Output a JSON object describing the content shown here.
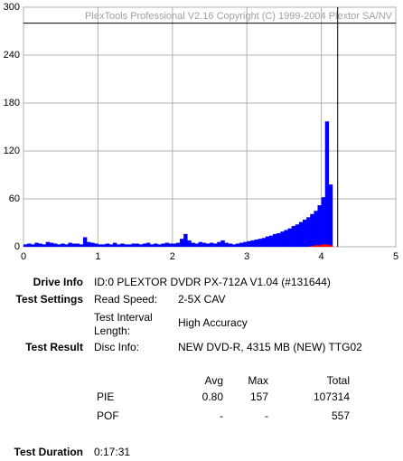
{
  "chart_data": {
    "type": "bar",
    "title": "PlexTools Professional V2.16 Copyright (C) 1999-2004 Plextor SA/NV",
    "x": [
      0.0,
      0.05,
      0.1,
      0.15,
      0.2,
      0.25,
      0.3,
      0.35,
      0.4,
      0.45,
      0.5,
      0.55,
      0.6,
      0.65,
      0.7,
      0.75,
      0.8,
      0.85,
      0.9,
      0.95,
      1.0,
      1.05,
      1.1,
      1.15,
      1.2,
      1.25,
      1.3,
      1.35,
      1.4,
      1.45,
      1.5,
      1.55,
      1.6,
      1.65,
      1.7,
      1.75,
      1.8,
      1.85,
      1.9,
      1.95,
      2.0,
      2.05,
      2.1,
      2.15,
      2.2,
      2.25,
      2.3,
      2.35,
      2.4,
      2.45,
      2.5,
      2.55,
      2.6,
      2.65,
      2.7,
      2.75,
      2.8,
      2.85,
      2.9,
      2.95,
      3.0,
      3.05,
      3.1,
      3.15,
      3.2,
      3.25,
      3.3,
      3.35,
      3.4,
      3.45,
      3.5,
      3.55,
      3.6,
      3.65,
      3.7,
      3.75,
      3.8,
      3.85,
      3.9,
      3.95,
      4.0,
      4.05,
      4.1
    ],
    "series": [
      {
        "name": "PIE",
        "color": "#0000ff",
        "values": [
          3,
          4,
          3,
          5,
          4,
          3,
          6,
          5,
          4,
          3,
          4,
          3,
          5,
          4,
          4,
          3,
          12,
          6,
          5,
          4,
          3,
          3,
          4,
          3,
          5,
          3,
          4,
          3,
          3,
          4,
          4,
          3,
          4,
          5,
          3,
          4,
          3,
          4,
          5,
          4,
          4,
          5,
          10,
          16,
          8,
          5,
          4,
          6,
          5,
          4,
          5,
          4,
          6,
          8,
          5,
          4,
          3,
          4,
          5,
          6,
          7,
          8,
          9,
          10,
          11,
          13,
          14,
          16,
          17,
          19,
          21,
          23,
          26,
          28,
          31,
          34,
          37,
          41,
          45,
          52,
          62,
          157,
          78
        ]
      },
      {
        "name": "POF",
        "color": "#ff0000",
        "values": [
          0,
          0,
          0,
          0,
          0,
          0,
          0,
          0,
          0,
          0,
          0,
          0,
          0,
          0,
          0,
          0,
          0,
          0,
          0,
          0,
          0,
          0,
          0,
          0,
          0,
          0,
          0,
          0,
          0,
          0,
          0,
          0,
          0,
          0,
          0,
          0,
          0,
          0,
          0,
          0,
          0,
          0,
          0,
          0,
          0,
          0,
          0,
          0,
          0,
          0,
          0,
          0,
          0,
          0,
          0,
          0,
          0,
          0,
          0,
          0,
          0,
          0,
          0,
          0,
          0,
          0,
          0,
          0,
          0,
          0,
          0,
          0,
          0,
          0,
          0,
          0,
          0,
          1,
          2,
          2,
          3,
          3,
          2
        ]
      }
    ],
    "xlim": [
      0,
      5
    ],
    "xticks": [
      0,
      1,
      2,
      3,
      4,
      5
    ],
    "ylim": [
      0,
      300
    ],
    "yticks": [
      0,
      60,
      120,
      180,
      240,
      300
    ],
    "grid": true,
    "max_line_y": 280,
    "end_line_x": 4.22
  },
  "info": {
    "drive_info": {
      "label": "Drive Info",
      "value": "ID:0 PLEXTOR DVDR PX-712A V1.04 (#131644)"
    },
    "test_settings": {
      "label": "Test Settings",
      "rows": [
        [
          "Read Speed:",
          "2-5X CAV"
        ],
        [
          "Test Interval Length:",
          "High Accuracy"
        ]
      ]
    },
    "test_result": {
      "label": "Test Result",
      "rows": [
        [
          "Disc Info:",
          "NEW DVD-R, 4315 MB (NEW) TTG02"
        ]
      ]
    },
    "stats": {
      "header": [
        "Avg",
        "Max",
        "Total"
      ],
      "rows": [
        [
          "PIE",
          "0.80",
          "157",
          "107314"
        ],
        [
          "POF",
          "-",
          "-",
          "557"
        ]
      ]
    },
    "duration": {
      "label": "Test Duration",
      "value": "0:17:31"
    }
  }
}
